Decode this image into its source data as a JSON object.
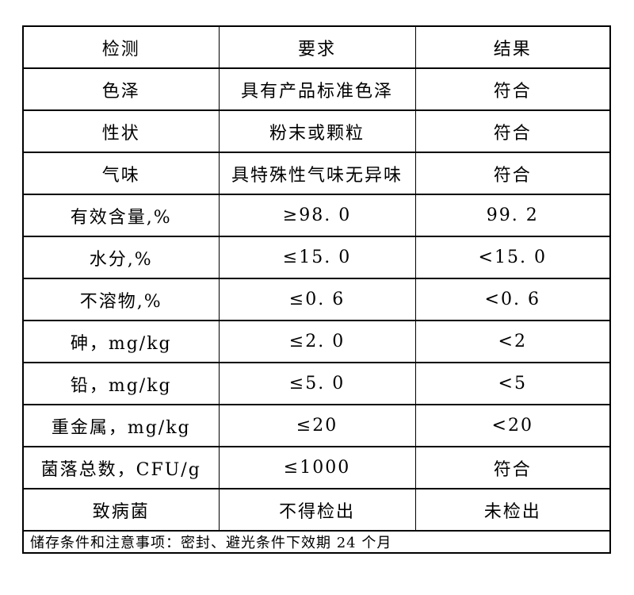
{
  "page": {
    "background_color": "#ffffff",
    "text_color": "#000000",
    "border_color": "#000000"
  },
  "table": {
    "headers": [
      "检测",
      "要求",
      "结果"
    ],
    "rows": [
      {
        "test": "色泽",
        "requirement": "具有产品标准色泽",
        "result": "符合"
      },
      {
        "test": "性状",
        "requirement": "粉末或颗粒",
        "result": "符合"
      },
      {
        "test": "气味",
        "requirement": "具特殊性气味无异味",
        "result": "符合"
      },
      {
        "test": "有效含量,%",
        "requirement": "≥98. 0",
        "result": "99. 2"
      },
      {
        "test": "水分,%",
        "requirement": "≤15. 0",
        "result": "<15. 0"
      },
      {
        "test": "不溶物,%",
        "requirement": "≤0. 6",
        "result": "<0. 6"
      },
      {
        "test": "砷，mg/kg",
        "requirement": "≤2. 0",
        "result": "<2"
      },
      {
        "test": "铅，mg/kg",
        "requirement": "≤5. 0",
        "result": "<5"
      },
      {
        "test": "重金属，mg/kg",
        "requirement": "≤20",
        "result": "<20"
      },
      {
        "test": "菌落总数，CFU/g",
        "requirement": "≤1000",
        "result": "符合"
      },
      {
        "test": "致病菌",
        "requirement": "不得检出",
        "result": "未检出"
      }
    ],
    "footer_note": "储存条件和注意事项：密封、避光条件下效期 24 个月"
  }
}
